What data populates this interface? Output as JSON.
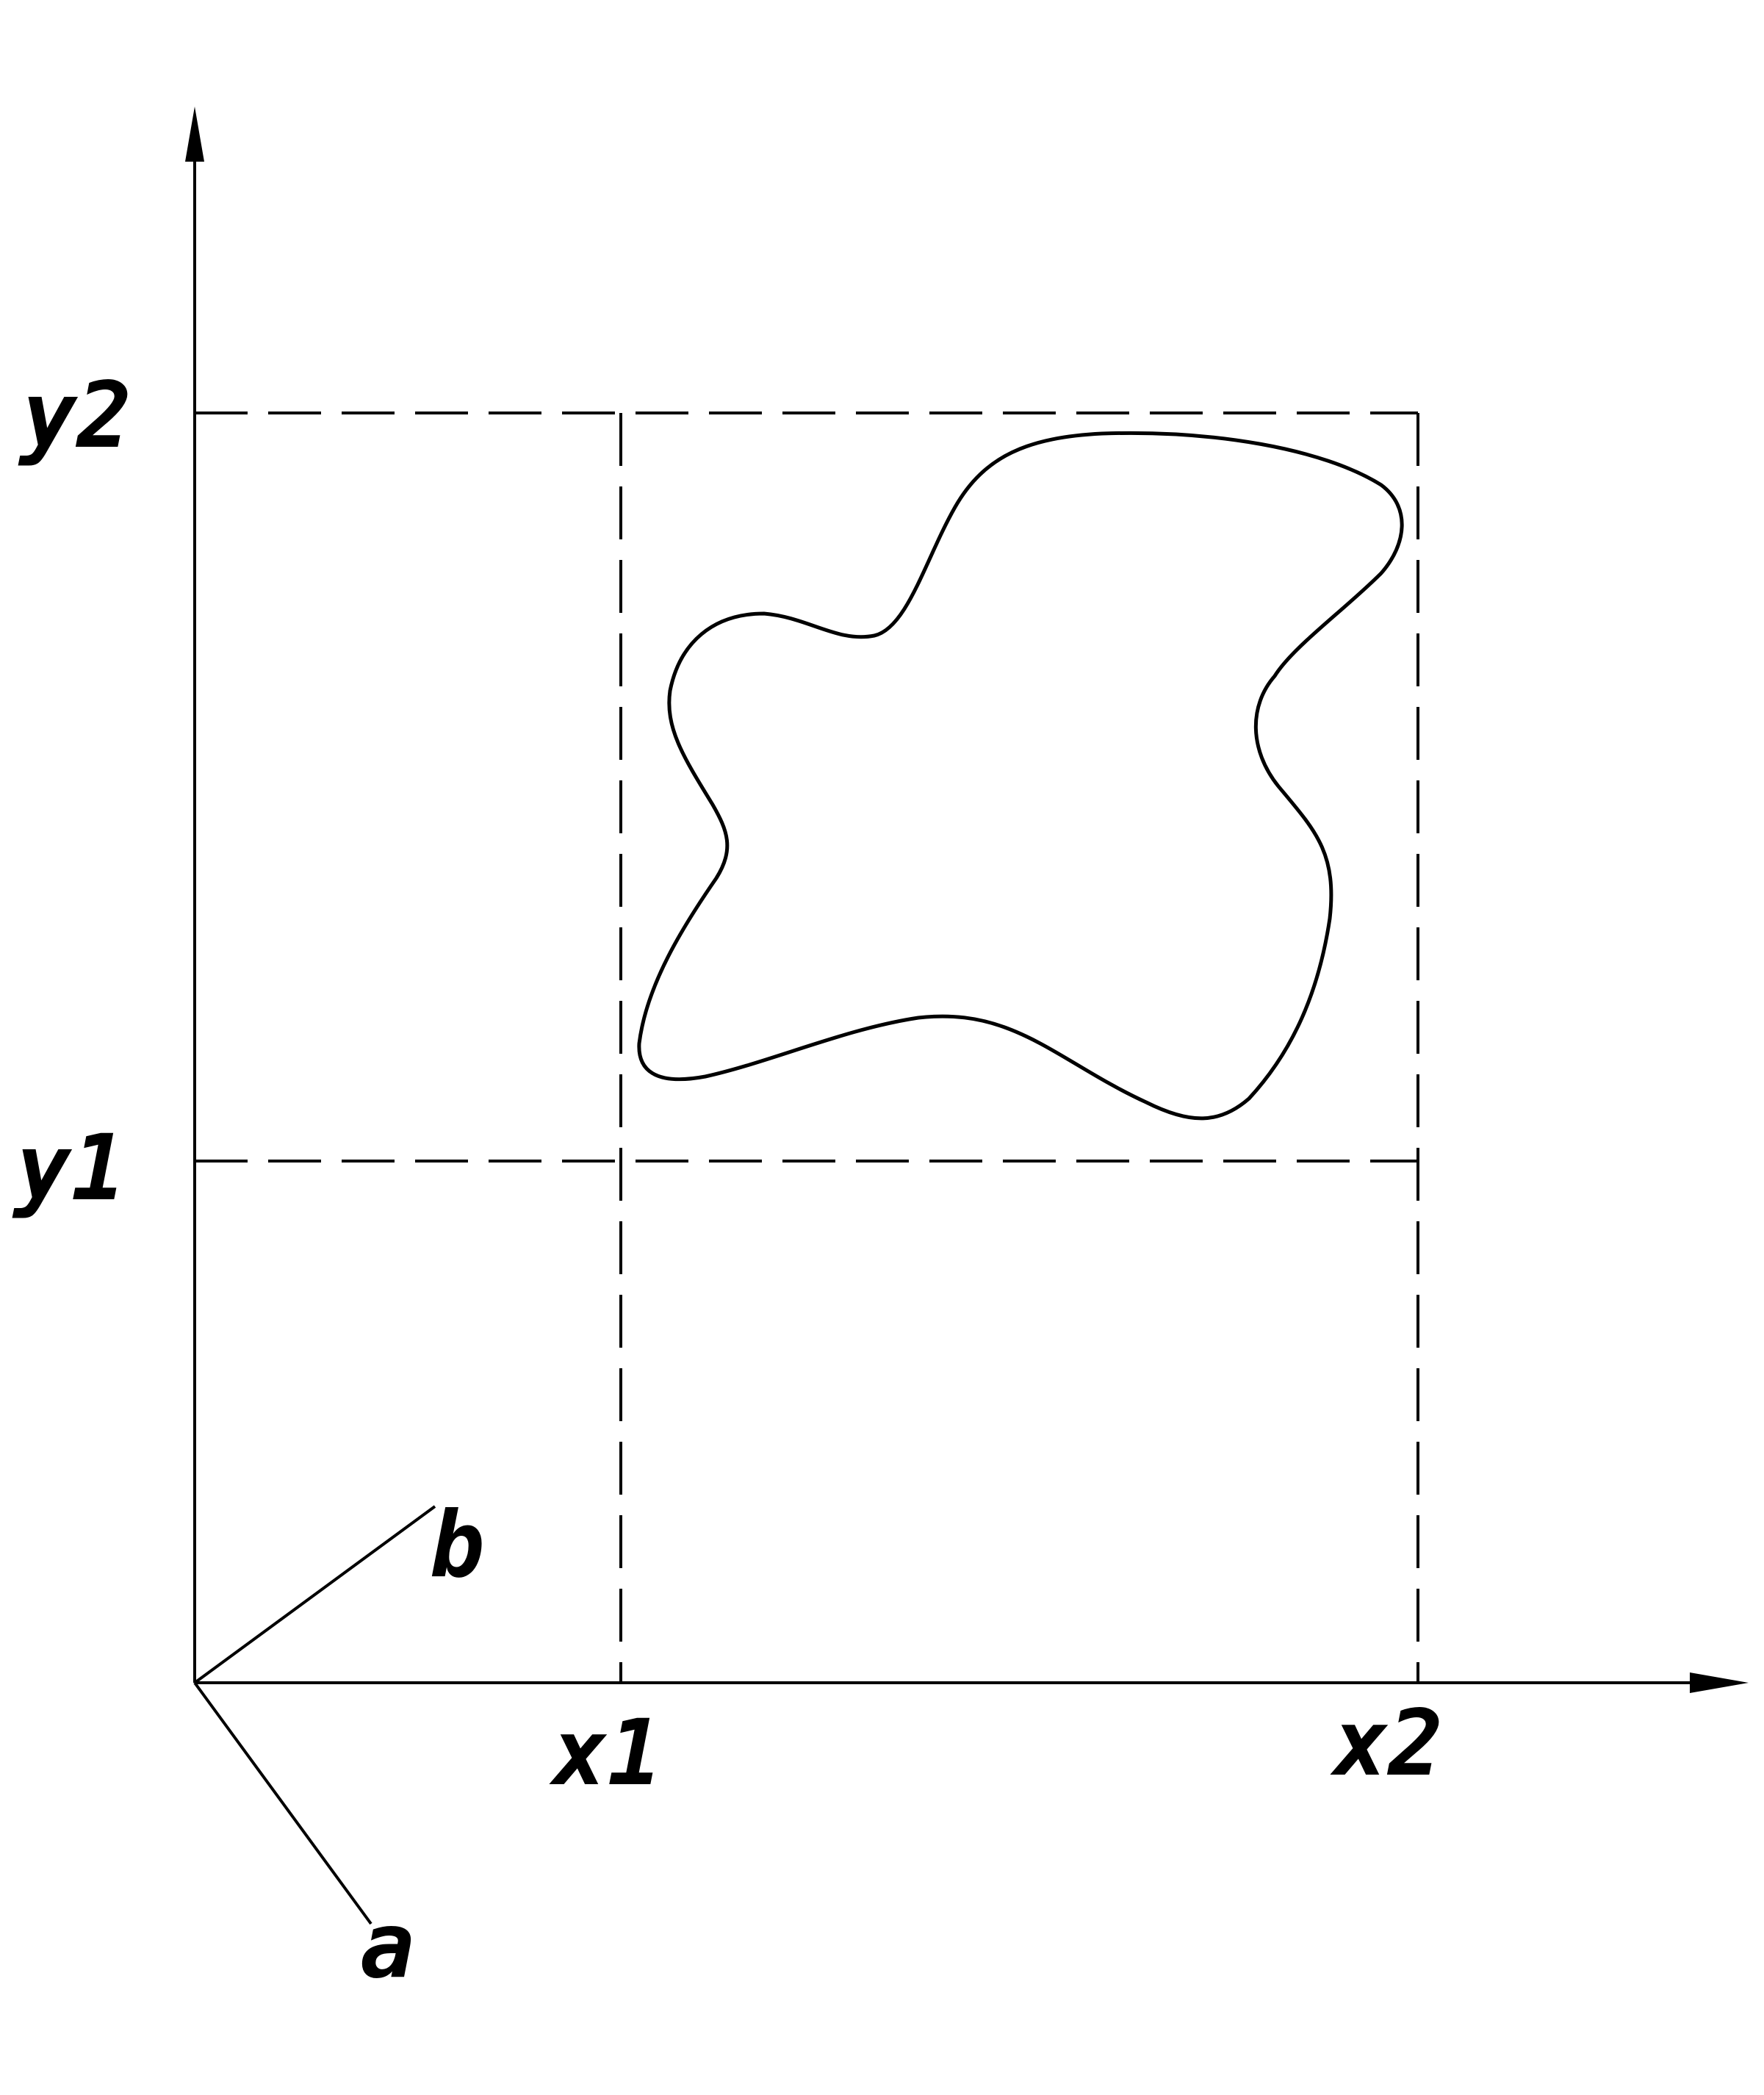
{
  "labels": {
    "y_upper": "y2",
    "y_lower": "y1",
    "x_left": "x1",
    "x_right": "x2",
    "axis_b": "b",
    "axis_a": "a"
  },
  "colors": {
    "line": "#000000",
    "background": "#ffffff"
  }
}
